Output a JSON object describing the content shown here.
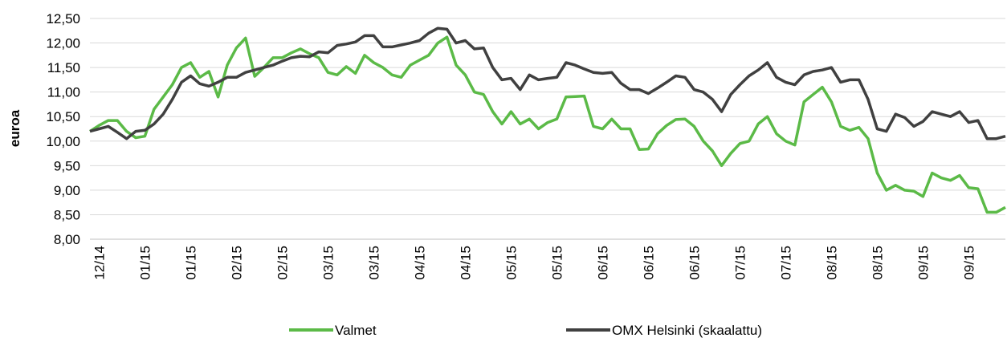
{
  "chart_data": {
    "type": "line",
    "ylabel": "euroa",
    "categories": [
      null,
      "12/14",
      null,
      null,
      null,
      null,
      "01/15",
      null,
      null,
      null,
      null,
      "01/15",
      null,
      null,
      null,
      null,
      "02/15",
      null,
      null,
      null,
      null,
      "02/15",
      null,
      null,
      null,
      null,
      "03/15",
      null,
      null,
      null,
      null,
      "03/15",
      null,
      null,
      null,
      null,
      "04/15",
      null,
      null,
      null,
      null,
      "04/15",
      null,
      null,
      null,
      null,
      "05/15",
      null,
      null,
      null,
      null,
      "05/15",
      null,
      null,
      null,
      null,
      "06/15",
      null,
      null,
      null,
      null,
      "06/15",
      null,
      null,
      null,
      null,
      "06/15",
      null,
      null,
      null,
      null,
      "07/15",
      null,
      null,
      null,
      null,
      "07/15",
      null,
      null,
      null,
      null,
      "08/15",
      null,
      null,
      null,
      null,
      "08/15",
      null,
      null,
      null,
      null,
      "09/15",
      null,
      null,
      null,
      null,
      "09/15",
      null,
      null,
      null,
      null
    ],
    "series": [
      {
        "name": "Valmet",
        "color": "#5bba47",
        "values": [
          10.2,
          10.32,
          10.42,
          10.42,
          10.2,
          10.07,
          10.1,
          10.65,
          10.9,
          11.15,
          11.5,
          11.6,
          11.3,
          11.42,
          10.9,
          11.55,
          11.9,
          12.1,
          11.32,
          11.5,
          11.7,
          11.7,
          11.8,
          11.88,
          11.78,
          11.7,
          11.4,
          11.35,
          11.52,
          11.38,
          11.75,
          11.6,
          11.5,
          11.35,
          11.3,
          11.55,
          11.65,
          11.75,
          12.0,
          12.12,
          11.55,
          11.35,
          11.0,
          10.95,
          10.6,
          10.35,
          10.6,
          10.35,
          10.45,
          10.25,
          10.38,
          10.45,
          10.9,
          10.91,
          10.92,
          10.3,
          10.25,
          10.45,
          10.25,
          10.25,
          9.83,
          9.84,
          10.15,
          10.32,
          10.44,
          10.45,
          10.3,
          10.0,
          9.8,
          9.5,
          9.75,
          9.95,
          10.0,
          10.35,
          10.5,
          10.15,
          10.0,
          9.92,
          10.8,
          10.95,
          11.1,
          10.8,
          10.3,
          10.22,
          10.28,
          10.05,
          9.35,
          9.0,
          9.1,
          9.0,
          8.98,
          8.87,
          9.35,
          9.25,
          9.2,
          9.3,
          9.05,
          9.03,
          8.55,
          8.55,
          8.65
        ]
      },
      {
        "name": "OMX Helsinki (skaalattu)",
        "color": "#404040",
        "values": [
          10.2,
          10.25,
          10.3,
          10.18,
          10.05,
          10.2,
          10.22,
          10.35,
          10.55,
          10.85,
          11.2,
          11.33,
          11.17,
          11.12,
          11.2,
          11.3,
          11.3,
          11.4,
          11.45,
          11.5,
          11.55,
          11.63,
          11.7,
          11.73,
          11.72,
          11.82,
          11.8,
          11.95,
          11.98,
          12.02,
          12.15,
          12.15,
          11.92,
          11.92,
          11.96,
          12.0,
          12.05,
          12.2,
          12.3,
          12.28,
          12.0,
          12.05,
          11.88,
          11.9,
          11.5,
          11.25,
          11.28,
          11.05,
          11.35,
          11.25,
          11.28,
          11.3,
          11.6,
          11.55,
          11.47,
          11.4,
          11.38,
          11.4,
          11.18,
          11.05,
          11.05,
          10.97,
          11.08,
          11.2,
          11.33,
          11.3,
          11.05,
          11.0,
          10.85,
          10.6,
          10.95,
          11.15,
          11.33,
          11.45,
          11.6,
          11.3,
          11.2,
          11.15,
          11.35,
          11.42,
          11.45,
          11.5,
          11.2,
          11.25,
          11.25,
          10.85,
          10.25,
          10.2,
          10.55,
          10.48,
          10.3,
          10.4,
          10.6,
          10.55,
          10.5,
          10.6,
          10.38,
          10.42,
          10.05,
          10.05,
          10.1
        ]
      }
    ],
    "ylim": [
      8,
      12.5
    ],
    "yticks": [
      {
        "value": 8,
        "label": "8,00"
      },
      {
        "value": 8.5,
        "label": "8,50"
      },
      {
        "value": 9,
        "label": "9,00"
      },
      {
        "value": 9.5,
        "label": "9,50"
      },
      {
        "value": 10,
        "label": "10,00"
      },
      {
        "value": 10.5,
        "label": "10,50"
      },
      {
        "value": 11,
        "label": "11,00"
      },
      {
        "value": 11.5,
        "label": "11,50"
      },
      {
        "value": 12,
        "label": "12,00"
      },
      {
        "value": 12.5,
        "label": "12,50"
      }
    ],
    "grid": true,
    "legend": "bottom"
  }
}
